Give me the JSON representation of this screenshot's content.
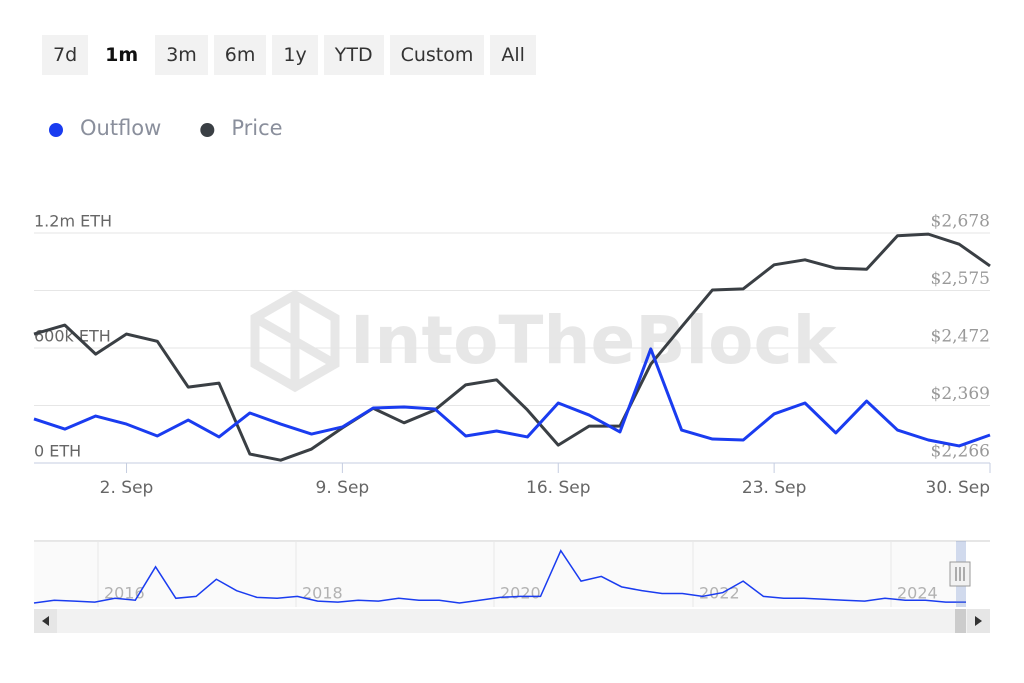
{
  "range_selector": {
    "buttons": [
      "7d",
      "1m",
      "3m",
      "6m",
      "1y",
      "YTD",
      "Custom",
      "All"
    ],
    "selected": "1m"
  },
  "chart_data": {
    "type": "line",
    "watermark": "IntoTheBlock",
    "categories": [
      null,
      null,
      null,
      "2. Sep",
      null,
      null,
      null,
      null,
      null,
      null,
      "9. Sep",
      null,
      null,
      null,
      null,
      null,
      null,
      "16. Sep",
      null,
      null,
      null,
      null,
      null,
      null,
      "23. Sep",
      null,
      null,
      null,
      null,
      null,
      null,
      "30. Sep"
    ],
    "series": [
      {
        "name": "Outflow",
        "color": "#1a3cf0",
        "values": [
          230000,
          177000,
          245000,
          203000,
          141000,
          224000,
          136000,
          261000,
          203000,
          151000,
          188000,
          287000,
          292000,
          282000,
          141000,
          167000,
          136000,
          313000,
          250000,
          162000,
          595000,
          172000,
          125000,
          120000,
          256000,
          313000,
          157000,
          323000,
          172000,
          120000,
          89000,
          146000
        ]
      },
      {
        "name": "Price",
        "color": "#3a3f44",
        "axis": "y2",
        "values": [
          2497,
          2513,
          2461,
          2497,
          2484,
          2402,
          2409,
          2282,
          2271,
          2291,
          2329,
          2364,
          2338,
          2361,
          2406,
          2415,
          2361,
          2298,
          2332,
          2332,
          2443,
          2510,
          2576,
          2578,
          2621,
          2630,
          2615,
          2613,
          2673,
          2676,
          2658,
          2619
        ]
      }
    ],
    "ylim": [
      0,
      1200000
    ],
    "yticks": [
      {
        "value": 0,
        "label": "0 ETH"
      },
      {
        "value": 600000,
        "label": "600k ETH"
      },
      {
        "value": 1200000,
        "label": "1.2m ETH"
      }
    ],
    "y2lim": [
      2266,
      2678
    ],
    "y2ticks": [
      {
        "value": 2266,
        "label": "$2,266"
      },
      {
        "value": 2369,
        "label": "$2,369"
      },
      {
        "value": 2472,
        "label": "$2,472"
      },
      {
        "value": 2575,
        "label": "$2,575"
      },
      {
        "value": 2678,
        "label": "$2,678"
      }
    ],
    "grid": true
  },
  "navigator": {
    "x_labels": [
      "2016",
      "2018",
      "2020",
      "2022",
      "2024"
    ],
    "color": "#1a3cf0",
    "ylim": [
      0,
      1200000
    ],
    "values": [
      19000,
      76000,
      57000,
      38000,
      114000,
      76000,
      743000,
      114000,
      152000,
      495000,
      267000,
      133000,
      114000,
      152000,
      57000,
      38000,
      76000,
      57000,
      114000,
      76000,
      76000,
      19000,
      76000,
      133000,
      152000,
      152000,
      1067000,
      457000,
      552000,
      343000,
      267000,
      210000,
      210000,
      152000,
      229000,
      457000,
      152000,
      114000,
      114000,
      95000,
      76000,
      57000,
      114000,
      76000,
      76000,
      38000,
      38000
    ]
  }
}
